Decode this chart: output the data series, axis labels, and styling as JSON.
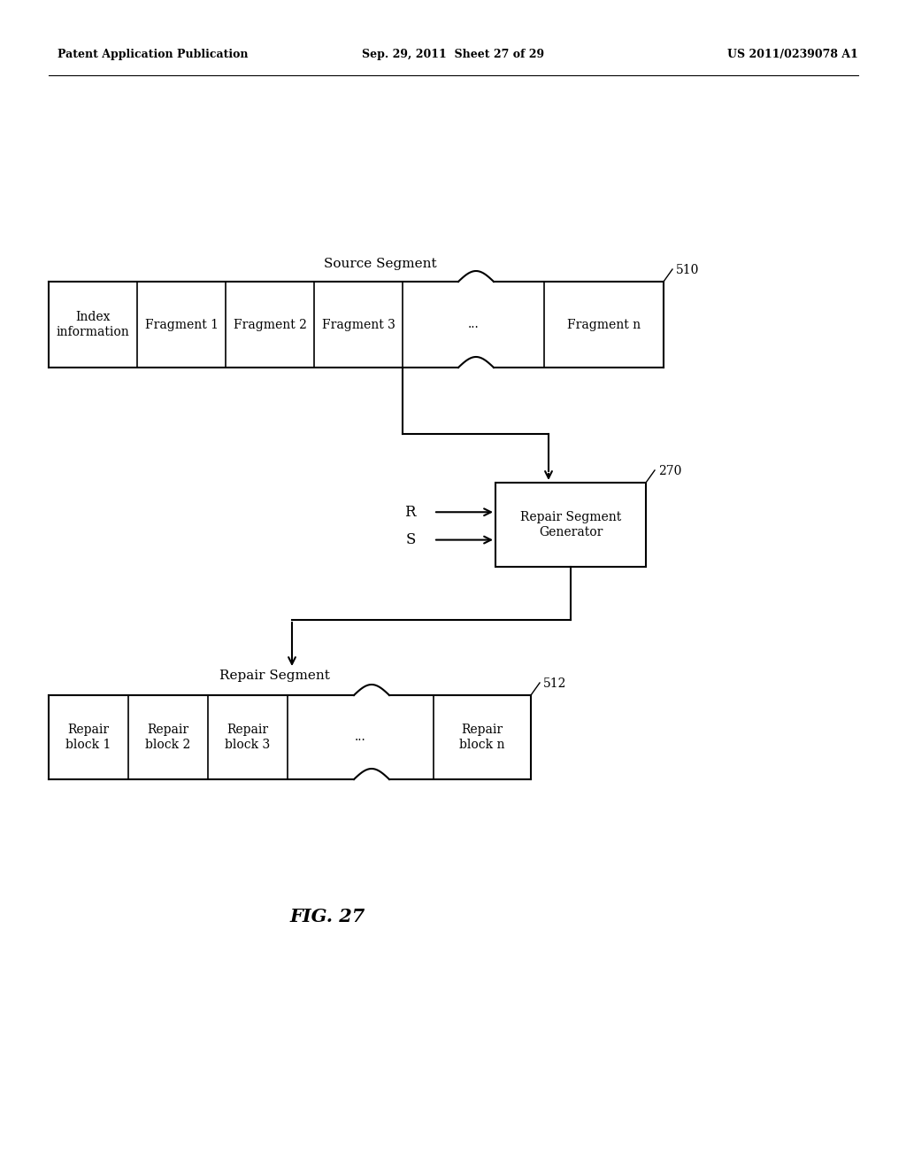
{
  "title_left": "Patent Application Publication",
  "title_center": "Sep. 29, 2011  Sheet 27 of 29",
  "title_right": "US 2011/0239078 A1",
  "source_segment_label": "Source Segment",
  "source_segment_ref": "510",
  "repair_generator_label": "Repair Segment\nGenerator",
  "repair_generator_ref": "270",
  "repair_segment_label": "Repair Segment",
  "repair_segment_ref": "512",
  "r_label": "R",
  "s_label": "S",
  "fig_label": "FIG. 27",
  "bg_color": "#ffffff",
  "box_color": "#ffffff",
  "line_color": "#000000",
  "text_color": "#000000",
  "header_fontsize": 9,
  "label_fontsize": 11,
  "cell_fontsize": 10,
  "ref_fontsize": 10,
  "fig_fontsize": 15
}
